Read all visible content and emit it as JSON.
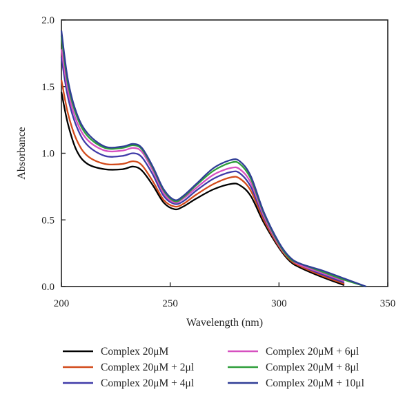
{
  "chart_data": {
    "type": "line",
    "xlabel": "Wavelength (nm)",
    "ylabel": "Absorbance",
    "xlim": [
      200,
      350
    ],
    "ylim": [
      0,
      2
    ],
    "xticks": [
      200,
      250,
      300,
      350
    ],
    "yticks": [
      0.0,
      0.5,
      1.0,
      1.5,
      2.0
    ],
    "xtick_labels": [
      "200",
      "250",
      "300",
      "350"
    ],
    "ytick_labels": [
      "0.0",
      "0.5",
      "1.0",
      "1.5",
      "2.0"
    ],
    "grid": false,
    "legend_position": "bottom",
    "x": [
      200,
      203,
      207,
      212,
      220,
      228,
      233,
      237,
      242,
      247,
      252,
      256,
      262,
      270,
      278,
      282,
      287,
      293,
      300,
      305,
      310,
      320,
      330,
      340
    ],
    "series": [
      {
        "name": "Complex 20μM",
        "color": "#000000",
        "values": [
          1.46,
          1.22,
          1.02,
          0.92,
          0.88,
          0.88,
          0.9,
          0.87,
          0.76,
          0.63,
          0.58,
          0.6,
          0.66,
          0.73,
          0.77,
          0.76,
          0.68,
          0.48,
          0.29,
          0.19,
          0.14,
          0.07,
          0.01,
          null
        ]
      },
      {
        "name": "Complex 20μM + 2μl",
        "color": "#d24a1b",
        "values": [
          1.55,
          1.3,
          1.1,
          0.98,
          0.92,
          0.92,
          0.94,
          0.91,
          0.79,
          0.65,
          0.6,
          0.62,
          0.69,
          0.77,
          0.82,
          0.81,
          0.72,
          0.5,
          0.3,
          0.2,
          0.15,
          0.08,
          0.02,
          null
        ]
      },
      {
        "name": "Complex 20μM + 4μl",
        "color": "#3f3aa8",
        "values": [
          1.72,
          1.42,
          1.2,
          1.06,
          0.98,
          0.98,
          1.0,
          0.97,
          0.84,
          0.68,
          0.62,
          0.64,
          0.72,
          0.81,
          0.86,
          0.85,
          0.75,
          0.52,
          0.31,
          0.21,
          0.16,
          0.09,
          0.03,
          null
        ]
      },
      {
        "name": "Complex 20μM + 6μl",
        "color": "#d650c0",
        "values": [
          1.78,
          1.47,
          1.24,
          1.1,
          1.02,
          1.02,
          1.04,
          1.01,
          0.87,
          0.7,
          0.63,
          0.66,
          0.74,
          0.84,
          0.89,
          0.88,
          0.78,
          0.53,
          0.31,
          0.21,
          0.16,
          0.1,
          0.04,
          null
        ]
      },
      {
        "name": "Complex 20μM + 8μl",
        "color": "#2e9e3a",
        "values": [
          1.88,
          1.52,
          1.28,
          1.13,
          1.04,
          1.04,
          1.06,
          1.03,
          0.89,
          0.72,
          0.64,
          0.67,
          0.76,
          0.87,
          0.93,
          0.92,
          0.81,
          0.55,
          0.32,
          0.21,
          0.17,
          0.11,
          0.05,
          0.0
        ]
      },
      {
        "name": "Complex 20μM + 10μl",
        "color": "#2f3d96",
        "values": [
          1.92,
          1.55,
          1.3,
          1.15,
          1.05,
          1.05,
          1.07,
          1.04,
          0.9,
          0.73,
          0.65,
          0.68,
          0.77,
          0.89,
          0.95,
          0.94,
          0.83,
          0.56,
          0.33,
          0.22,
          0.17,
          0.12,
          0.06,
          0.0
        ]
      }
    ]
  }
}
